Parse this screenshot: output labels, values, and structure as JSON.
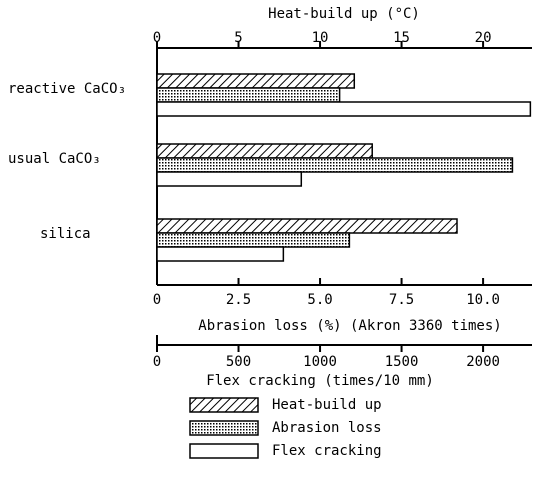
{
  "chart_data": {
    "type": "bar",
    "categories": [
      "reactive CaCO₃",
      "usual CaCO₃",
      "silica"
    ],
    "axes": [
      {
        "label": "Heat-build up (°C)",
        "position": "top",
        "lim": [
          0,
          23
        ],
        "ticks": [
          0,
          5,
          10,
          15,
          20
        ]
      },
      {
        "label": "Abrasion loss (%) (Akron 3360 times)",
        "position": "bottom",
        "lim": [
          0,
          11.5
        ],
        "ticks": [
          0,
          2.5,
          {
            "value": 5,
            "label": "5.0"
          },
          7.5,
          {
            "value": 10,
            "label": "10.0"
          }
        ]
      },
      {
        "label": "Flex cracking  (times/10 mm)",
        "position": "bottom",
        "lim": [
          0,
          2300
        ],
        "ticks": [
          0,
          500,
          1000,
          1500,
          2000
        ]
      }
    ],
    "series": [
      {
        "name": "Heat-build up",
        "axis": 0,
        "pattern": "hatch",
        "color": "#000000",
        "values": [
          12.1,
          13.2,
          18.4
        ]
      },
      {
        "name": "Abrasion loss",
        "axis": 1,
        "pattern": "dots",
        "color": "#000000",
        "values": [
          5.6,
          10.9,
          5.9
        ]
      },
      {
        "name": "Flex cracking",
        "axis": 2,
        "pattern": "none",
        "color": "#000000",
        "values": [
          2290,
          885,
          775
        ]
      }
    ]
  }
}
